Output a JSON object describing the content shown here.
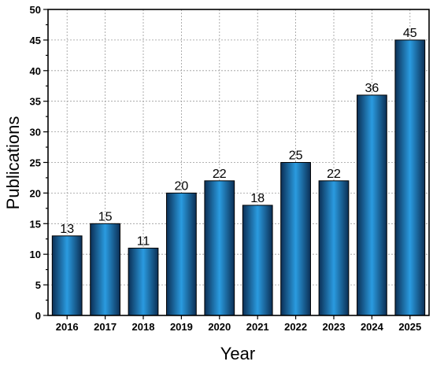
{
  "chart_data": {
    "type": "bar",
    "title": "",
    "xlabel": "Year",
    "ylabel": "Publications",
    "categories": [
      "2016",
      "2017",
      "2018",
      "2019",
      "2020",
      "2021",
      "2022",
      "2023",
      "2024",
      "2025"
    ],
    "values": [
      13,
      15,
      11,
      20,
      22,
      18,
      25,
      22,
      36,
      45
    ],
    "ylim": [
      0,
      50
    ],
    "yticks": [
      0,
      5,
      10,
      15,
      20,
      25,
      30,
      35,
      40,
      45,
      50
    ],
    "grid": true,
    "data_labels": true,
    "colors": {
      "bar_dark": "#0b2f55",
      "bar_light": "#2a9be0",
      "grid": "#9a9a9a"
    }
  }
}
